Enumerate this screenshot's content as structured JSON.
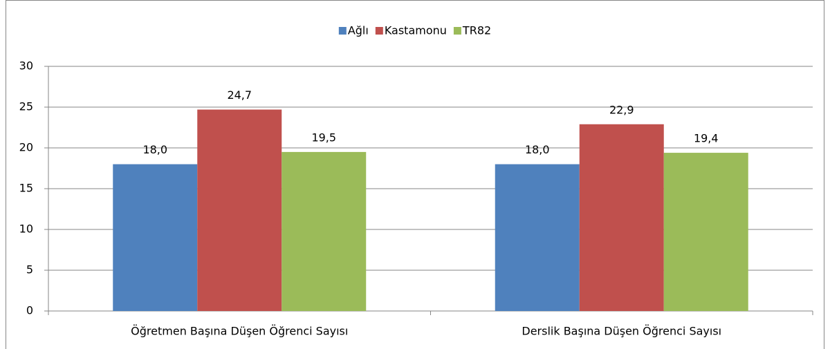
{
  "chart_data": {
    "type": "bar",
    "categories": [
      "Öğretmen Başına Düşen Öğrenci Sayısı",
      "Derslik Başına Düşen Öğrenci Sayısı"
    ],
    "series": [
      {
        "name": "Ağlı",
        "color": "#4f81bd",
        "values": [
          18.0,
          18.0
        ],
        "value_labels": [
          "18,0",
          "18,0"
        ]
      },
      {
        "name": "Kastamonu",
        "color": "#c0504d",
        "values": [
          24.7,
          22.9
        ],
        "value_labels": [
          "24,7",
          "22,9"
        ]
      },
      {
        "name": "TR82",
        "color": "#9bbb59",
        "values": [
          19.5,
          19.4
        ],
        "value_labels": [
          "19,5",
          "19,4"
        ]
      }
    ],
    "ylim": [
      0,
      30
    ],
    "yticks": [
      0,
      5,
      10,
      15,
      20,
      25,
      30
    ],
    "grid": true,
    "legend": "top"
  }
}
